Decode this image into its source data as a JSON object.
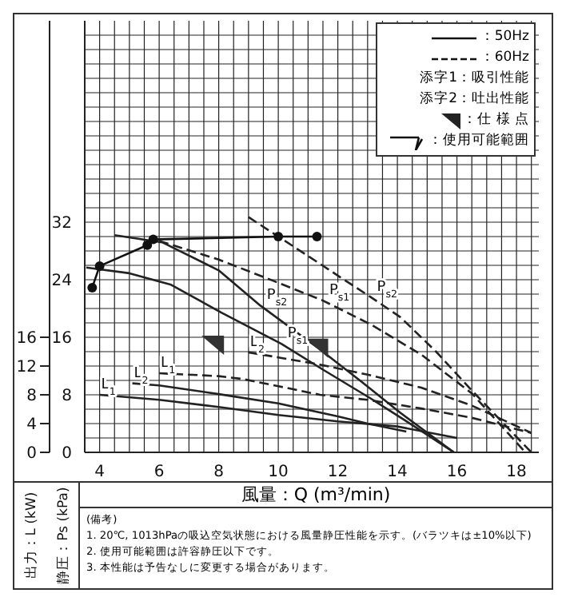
{
  "chart_data": {
    "type": "line",
    "xlabel": "風量：Q (m³/min)",
    "ylabel": "静圧：Ps (kPa)",
    "y2label": "出力：L (kW)",
    "xlim": [
      3.5,
      18.75
    ],
    "ylim": [
      0,
      60
    ],
    "y2lim": [
      0,
      60
    ],
    "xticks": [
      4,
      {
        "value": 4.5,
        "label": null
      },
      {
        "value": 5,
        "label": null
      },
      {
        "value": 5.5,
        "label": null
      },
      6,
      {
        "value": 6.5,
        "label": null
      },
      {
        "value": 7,
        "label": null
      },
      {
        "value": 7.5,
        "label": null
      },
      8,
      {
        "value": 8.5,
        "label": null
      },
      {
        "value": 9,
        "label": null
      },
      {
        "value": 9.5,
        "label": null
      },
      10,
      {
        "value": 10.5,
        "label": null
      },
      {
        "value": 11,
        "label": null
      },
      {
        "value": 11.5,
        "label": null
      },
      12,
      {
        "value": 12.5,
        "label": null
      },
      {
        "value": 13,
        "label": null
      },
      {
        "value": 13.5,
        "label": null
      },
      14,
      {
        "value": 14.5,
        "label": null
      },
      {
        "value": 15,
        "label": null
      },
      {
        "value": 15.5,
        "label": null
      },
      16,
      {
        "value": 16.5,
        "label": null
      },
      {
        "value": 17,
        "label": null
      },
      {
        "value": 17.5,
        "label": null
      },
      18,
      {
        "value": 18.5,
        "label": null
      }
    ],
    "yticks": [
      0,
      {
        "value": 2,
        "label": null
      },
      {
        "value": 4,
        "label": null
      },
      {
        "value": 6,
        "label": null
      },
      8,
      {
        "value": 10,
        "label": null
      },
      {
        "value": 12,
        "label": null
      },
      {
        "value": 14,
        "label": null
      },
      16,
      {
        "value": 18,
        "label": null
      },
      {
        "value": 20,
        "label": null
      },
      {
        "value": 22,
        "label": null
      },
      24,
      {
        "value": 26,
        "label": null
      },
      {
        "value": 28,
        "label": null
      },
      {
        "value": 30,
        "label": null
      },
      32,
      {
        "value": 34,
        "label": null
      },
      {
        "value": 36,
        "label": null
      },
      {
        "value": 38,
        "label": null
      },
      {
        "value": 40,
        "label": null
      },
      {
        "value": 42,
        "label": null
      },
      {
        "value": 44,
        "label": null
      },
      {
        "value": 46,
        "label": null
      },
      {
        "value": 48,
        "label": null
      },
      {
        "value": 50,
        "label": null
      },
      {
        "value": 52,
        "label": null
      },
      {
        "value": 54,
        "label": null
      },
      {
        "value": 56,
        "label": null
      },
      {
        "value": 58,
        "label": null
      }
    ],
    "y2ticks": [
      0,
      4,
      8,
      12,
      16
    ],
    "grid": true,
    "legend": false,
    "marker": "none",
    "series": [
      {
        "name": "P$_{s1}$",
        "color": "#222222",
        "line_style": "solid",
        "x": [
          3.55,
          5,
          6.4,
          8.1,
          10.1,
          11.5,
          13.1,
          14.5,
          15.9
        ],
        "values": [
          25.7,
          24.9,
          23.3,
          19.4,
          15.1,
          11.5,
          7.5,
          3.8,
          0
        ]
      },
      {
        "name": "P$_{s2}$",
        "color": "#222222",
        "line_style": "solid",
        "x": [
          4.5,
          6.1,
          8,
          9.4,
          11.4,
          12.8,
          14.1,
          15.9
        ],
        "values": [
          30.2,
          29.2,
          25.3,
          20.4,
          14.3,
          9.8,
          5.5,
          0
        ]
      },
      {
        "name": "P$_{s1}$",
        "color": "#222222",
        "line_style": "dashed",
        "x": [
          6,
          8,
          9.8,
          11.5,
          13.1,
          14.8,
          16.5,
          18.3
        ],
        "values": [
          29.4,
          26.8,
          23.9,
          21.1,
          17.8,
          13.6,
          8.2,
          0
        ]
      },
      {
        "name": "P$_{s2}$",
        "color": "#222222",
        "line_style": "dashed",
        "x": [
          9,
          10,
          11,
          12.1,
          13.1,
          14.1,
          15.3,
          16.5,
          18.5
        ],
        "values": [
          32.7,
          30,
          27.3,
          24.3,
          21.6,
          18.8,
          14,
          8.6,
          0
        ]
      },
      {
        "name": "L$_{1}$",
        "color": "#222222",
        "line_style": "solid",
        "axis": "y2",
        "x": [
          4,
          6,
          8,
          10,
          12,
          14,
          16
        ],
        "values": [
          8.0,
          7.3,
          6.3,
          5.2,
          4.3,
          3.6,
          2.0
        ]
      },
      {
        "name": "L$_{2}$",
        "color": "#222222",
        "line_style": "solid",
        "axis": "y2",
        "x": [
          5.1,
          6,
          8,
          10,
          12,
          13,
          14.3
        ],
        "values": [
          9.6,
          9.3,
          8.1,
          6.8,
          5.0,
          4.0,
          2.9
        ]
      },
      {
        "name": "L$_{1}$",
        "color": "#222222",
        "line_style": "dashed",
        "axis": "y2",
        "x": [
          6,
          8,
          8.8,
          10,
          11.4,
          13,
          14.8,
          16.5,
          18.5
        ],
        "values": [
          11.0,
          10.6,
          10.2,
          9.2,
          8.0,
          7.3,
          6.1,
          4.8,
          2.7
        ]
      },
      {
        "name": "L$_{2}$",
        "color": "#222222",
        "line_style": "dashed",
        "axis": "y2",
        "x": [
          9,
          10,
          11.4,
          13,
          14.8,
          16.5,
          18.5
        ],
        "values": [
          13.9,
          13.2,
          12.2,
          10.8,
          9.0,
          6.5,
          2.7
        ]
      },
      {
        "color": "#111111",
        "line_style": "solid",
        "marker": "circle",
        "x": [
          3.75,
          4.0,
          5.6,
          5.8,
          10,
          11.3
        ],
        "values": [
          22.9,
          25.9,
          28.8,
          29.6,
          30,
          30
        ]
      },
      {
        "type": "scatter",
        "color": "#333333",
        "marker": "triangle",
        "x": [
          7.8,
          11.3
        ],
        "values": [
          15.1,
          14.7
        ]
      }
    ],
    "annotations": [
      "：50Hz",
      "：60Hz",
      "添字1：吸引性能",
      "添字2：吐出性能",
      "：仕 様 点",
      "：使用可能範囲",
      "(備考)",
      "1. 20℃, 1013hPaの吸込空気状態における風量静圧性能を示す。(バラツキは±10%以下)",
      "2. 使用可能範囲は許容静圧以下です。",
      "3. 本性能は予告なしに変更する場合があります。"
    ]
  }
}
